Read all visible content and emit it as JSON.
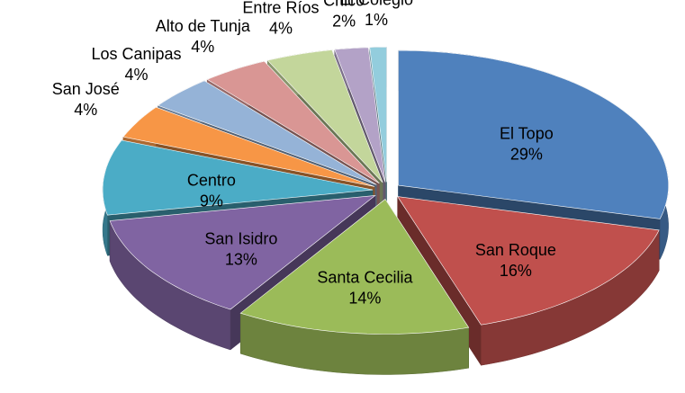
{
  "chart_data": {
    "type": "pie3d",
    "categories": [
      "El Topo",
      "San Roque",
      "Santa Cecilia",
      "San Isidro",
      "Centro",
      "San José",
      "Los Canipas",
      "Alto de Tunja",
      "Entre Ríos",
      "Chico",
      "El Colegio"
    ],
    "values": [
      29,
      16,
      14,
      13,
      9,
      4,
      4,
      4,
      4,
      2,
      1
    ],
    "value_labels": [
      "29%",
      "16%",
      "14%",
      "13%",
      "9%",
      "4%",
      "4%",
      "4%",
      "4%",
      "2%",
      "1%"
    ],
    "colors": [
      "#4f81bd",
      "#c0504d",
      "#9bbb59",
      "#8064a2",
      "#4bacc6",
      "#f79646",
      "#95b3d7",
      "#d99694",
      "#c3d69b",
      "#b3a2c7",
      "#93cddd"
    ]
  }
}
